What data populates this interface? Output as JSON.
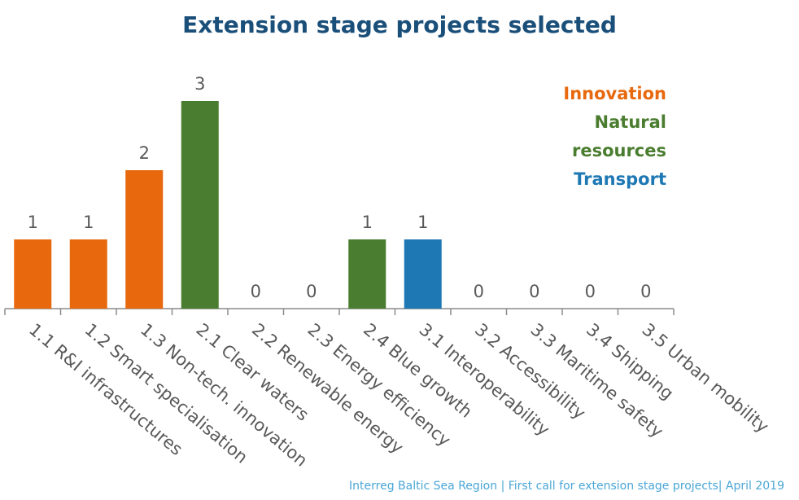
{
  "chart_data": {
    "type": "bar",
    "title": "Extension stage projects selected",
    "categories": [
      "1.1 R&I infrastructures",
      "1.2 Smart specialisation",
      "1.3 Non-tech. innovation",
      "2.1 Clear waters",
      "2.2 Renewable energy",
      "2.3 Energy efficiency",
      "2.4 Blue growth",
      "3.1 Interoperability",
      "3.2 Accessibility",
      "3.3 Maritime safety",
      "3.4 Shipping",
      "3.5 Urban mobility"
    ],
    "values": [
      1,
      1,
      2,
      3,
      0,
      0,
      1,
      1,
      0,
      0,
      0,
      0
    ],
    "groups": [
      "Innovation",
      "Innovation",
      "Innovation",
      "Natural resources",
      "Natural resources",
      "Natural resources",
      "Natural resources",
      "Transport",
      "Transport",
      "Transport",
      "Transport",
      "Transport"
    ],
    "ylim": [
      0,
      3
    ],
    "grid": false,
    "data_labels": true,
    "legend": {
      "placement": "top-right",
      "entries": [
        {
          "lines": [
            "Innovation"
          ],
          "color": "#e8690d"
        },
        {
          "lines": [
            "Natural",
            "resources"
          ],
          "color": "#4a7d2f"
        },
        {
          "lines": [
            "Transport"
          ],
          "color": "#1e78b4"
        }
      ]
    }
  },
  "colors": {
    "innovation": "#e8690d",
    "natural_resources": "#4a7d2f",
    "transport": "#1e78b4",
    "title": "#1a4f7a",
    "footer": "#4aa6d6"
  },
  "footer": "Interreg Baltic Sea Region  |  First call for extension stage projects| April 2019"
}
